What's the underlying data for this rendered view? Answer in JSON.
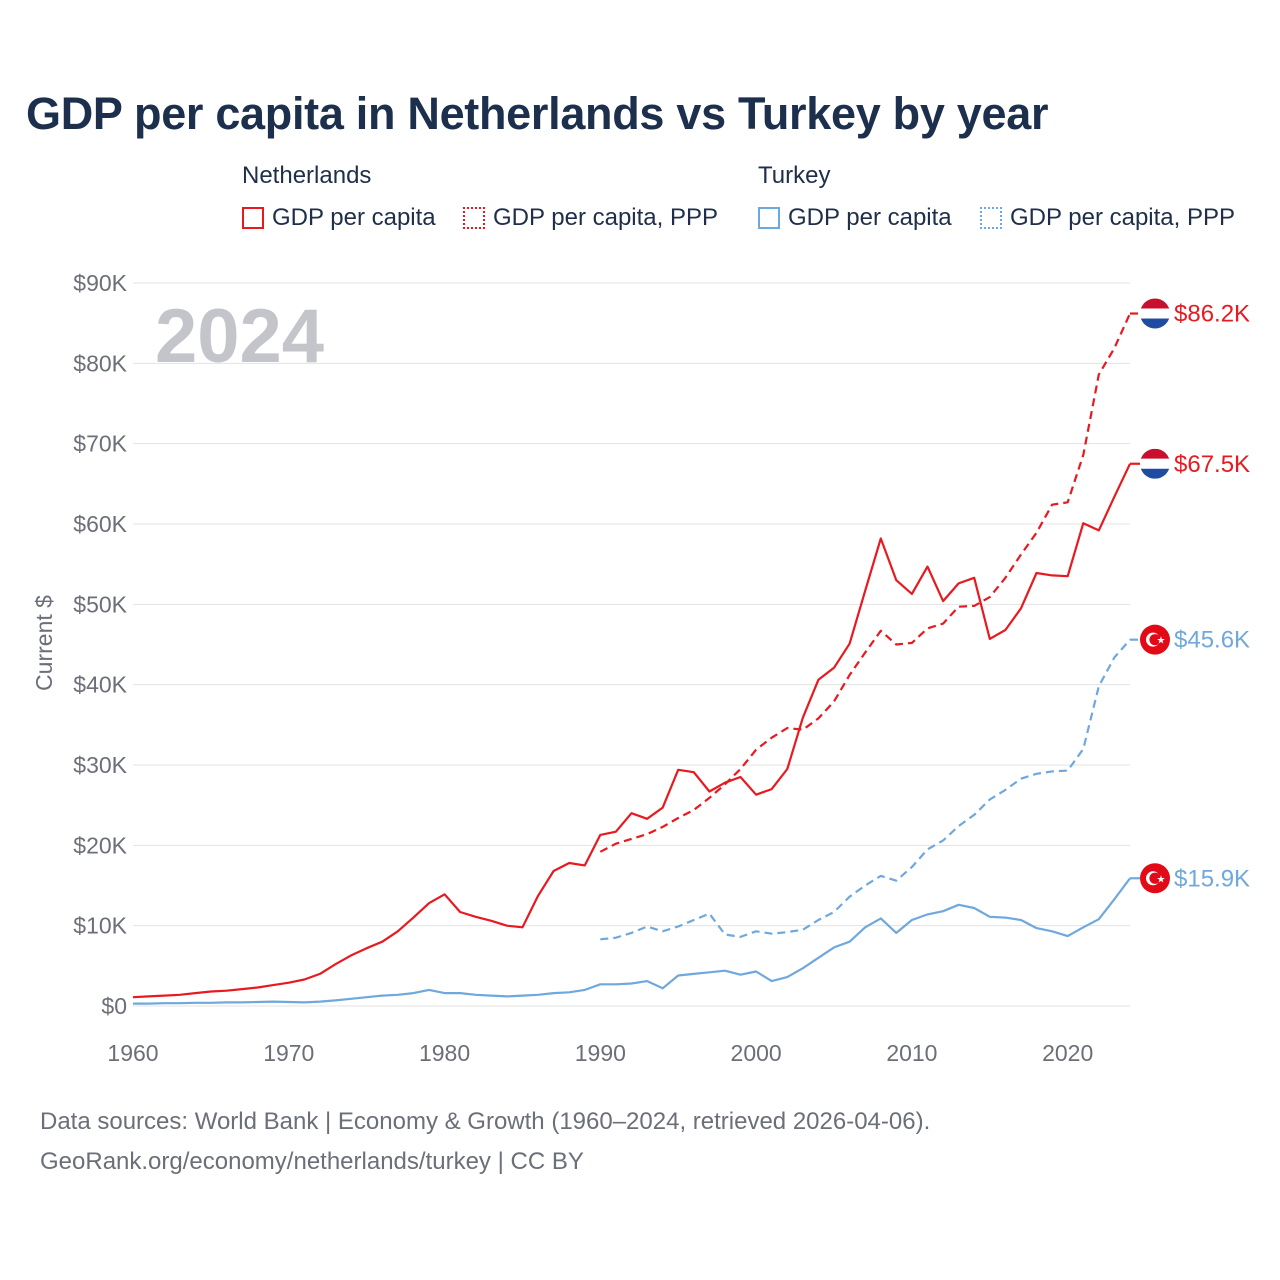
{
  "title": "GDP per capita in Netherlands vs Turkey by year",
  "legend": {
    "groups": [
      {
        "name": "Netherlands",
        "items": [
          "GDP per capita",
          "GDP per capita, PPP"
        ]
      },
      {
        "name": "Turkey",
        "items": [
          "GDP per capita",
          "GDP per capita, PPP"
        ]
      }
    ]
  },
  "year_watermark": "2024",
  "footer": {
    "line1": "Data sources: World Bank | Economy & Growth (1960–2024, retrieved 2026-04-06).",
    "line2": "GeoRank.org/economy/netherlands/turkey | CC BY"
  },
  "colors": {
    "netherlands": "#e8191f",
    "turkey": "#6fa8dc",
    "grid": "#e3e3e3",
    "axis_text": "#6b6f78"
  },
  "chart_data": {
    "type": "line",
    "title": "GDP per capita in Netherlands vs Turkey by year",
    "xlabel": "",
    "ylabel": "Current $",
    "xlim": [
      1960,
      2024
    ],
    "ylim": [
      0,
      90000
    ],
    "x_ticks": [
      1960,
      1970,
      1980,
      1990,
      2000,
      2010,
      2020
    ],
    "x_tick_labels": [
      "1960",
      "1970",
      "1980",
      "1990",
      "2000",
      "2010",
      "2020"
    ],
    "y_ticks": [
      0,
      10000,
      20000,
      30000,
      40000,
      50000,
      60000,
      70000,
      80000,
      90000
    ],
    "y_tick_labels": [
      "$0",
      "$10K",
      "$20K",
      "$30K",
      "$40K",
      "$50K",
      "$60K",
      "$70K",
      "$80K",
      "$90K"
    ],
    "grid": true,
    "series": [
      {
        "name": "Netherlands — GDP per capita",
        "country": "netherlands",
        "style": "solid",
        "end_label": "$67.5K",
        "x": [
          1960,
          1961,
          1962,
          1963,
          1964,
          1965,
          1966,
          1967,
          1968,
          1969,
          1970,
          1971,
          1972,
          1973,
          1974,
          1975,
          1976,
          1977,
          1978,
          1979,
          1980,
          1981,
          1982,
          1983,
          1984,
          1985,
          1986,
          1987,
          1988,
          1989,
          1990,
          1991,
          1992,
          1993,
          1994,
          1995,
          1996,
          1997,
          1998,
          1999,
          2000,
          2001,
          2002,
          2003,
          2004,
          2005,
          2006,
          2007,
          2008,
          2009,
          2010,
          2011,
          2012,
          2013,
          2014,
          2015,
          2016,
          2017,
          2018,
          2019,
          2020,
          2021,
          2022,
          2023,
          2024
        ],
        "values": [
          1100,
          1200,
          1300,
          1400,
          1600,
          1800,
          1900,
          2100,
          2300,
          2600,
          2900,
          3300,
          4000,
          5200,
          6300,
          7200,
          8000,
          9300,
          11000,
          12800,
          13900,
          11700,
          11100,
          10600,
          10000,
          9800,
          13700,
          16800,
          17800,
          17500,
          21300,
          21700,
          24000,
          23300,
          24700,
          29400,
          29100,
          26700,
          27800,
          28500,
          26300,
          27000,
          29500,
          35900,
          40600,
          42100,
          45100,
          51700,
          58200,
          53000,
          51300,
          54700,
          50400,
          52600,
          53300,
          45700,
          46800,
          49500,
          53900,
          53600,
          53500,
          60100,
          59200,
          63400,
          67500
        ]
      },
      {
        "name": "Netherlands — GDP per capita, PPP",
        "country": "netherlands",
        "style": "dashed",
        "end_label": "$86.2K",
        "x": [
          1990,
          1991,
          1992,
          1993,
          1994,
          1995,
          1996,
          1997,
          1998,
          1999,
          2000,
          2001,
          2002,
          2003,
          2004,
          2005,
          2006,
          2007,
          2008,
          2009,
          2010,
          2011,
          2012,
          2013,
          2014,
          2015,
          2016,
          2017,
          2018,
          2019,
          2020,
          2021,
          2022,
          2023,
          2024
        ],
        "values": [
          19200,
          20200,
          20800,
          21400,
          22300,
          23400,
          24400,
          25900,
          27600,
          29500,
          31900,
          33400,
          34600,
          34400,
          35800,
          37900,
          41200,
          44000,
          46700,
          45000,
          45200,
          47000,
          47600,
          49700,
          49800,
          50900,
          53300,
          56200,
          58900,
          62400,
          62700,
          68600,
          78600,
          81900,
          86200
        ]
      },
      {
        "name": "Turkey — GDP per capita",
        "country": "turkey",
        "style": "solid",
        "end_label": "$15.9K",
        "x": [
          1960,
          1961,
          1962,
          1963,
          1964,
          1965,
          1966,
          1967,
          1968,
          1969,
          1970,
          1971,
          1972,
          1973,
          1974,
          1975,
          1976,
          1977,
          1978,
          1979,
          1980,
          1981,
          1982,
          1983,
          1984,
          1985,
          1986,
          1987,
          1988,
          1989,
          1990,
          1991,
          1992,
          1993,
          1994,
          1995,
          1996,
          1997,
          1998,
          1999,
          2000,
          2001,
          2002,
          2003,
          2004,
          2005,
          2006,
          2007,
          2008,
          2009,
          2010,
          2011,
          2012,
          2013,
          2014,
          2015,
          2016,
          2017,
          2018,
          2019,
          2020,
          2021,
          2022,
          2023,
          2024
        ],
        "values": [
          300,
          300,
          350,
          350,
          400,
          400,
          450,
          450,
          500,
          550,
          500,
          450,
          550,
          700,
          900,
          1100,
          1300,
          1400,
          1600,
          2000,
          1600,
          1600,
          1400,
          1300,
          1200,
          1300,
          1400,
          1600,
          1700,
          2000,
          2700,
          2700,
          2800,
          3100,
          2200,
          3800,
          4000,
          4200,
          4400,
          3900,
          4300,
          3100,
          3600,
          4700,
          6000,
          7300,
          8000,
          9800,
          10900,
          9100,
          10700,
          11400,
          11800,
          12600,
          12200,
          11100,
          11000,
          10700,
          9700,
          9300,
          8700,
          9800,
          10800,
          13300,
          15900
        ]
      },
      {
        "name": "Turkey — GDP per capita, PPP",
        "country": "turkey",
        "style": "dashed",
        "end_label": "$45.6K",
        "x": [
          1990,
          1991,
          1992,
          1993,
          1994,
          1995,
          1996,
          1997,
          1998,
          1999,
          2000,
          2001,
          2002,
          2003,
          2004,
          2005,
          2006,
          2007,
          2008,
          2009,
          2010,
          2011,
          2012,
          2013,
          2014,
          2015,
          2016,
          2017,
          2018,
          2019,
          2020,
          2021,
          2022,
          2023,
          2024
        ],
        "values": [
          8300,
          8500,
          9100,
          9900,
          9300,
          9900,
          10700,
          11500,
          8900,
          8600,
          9300,
          9000,
          9200,
          9500,
          10700,
          11700,
          13600,
          15000,
          16200,
          15600,
          17300,
          19500,
          20600,
          22400,
          23800,
          25700,
          26900,
          28300,
          28900,
          29200,
          29300,
          32000,
          39800,
          43400,
          45600
        ]
      }
    ]
  }
}
